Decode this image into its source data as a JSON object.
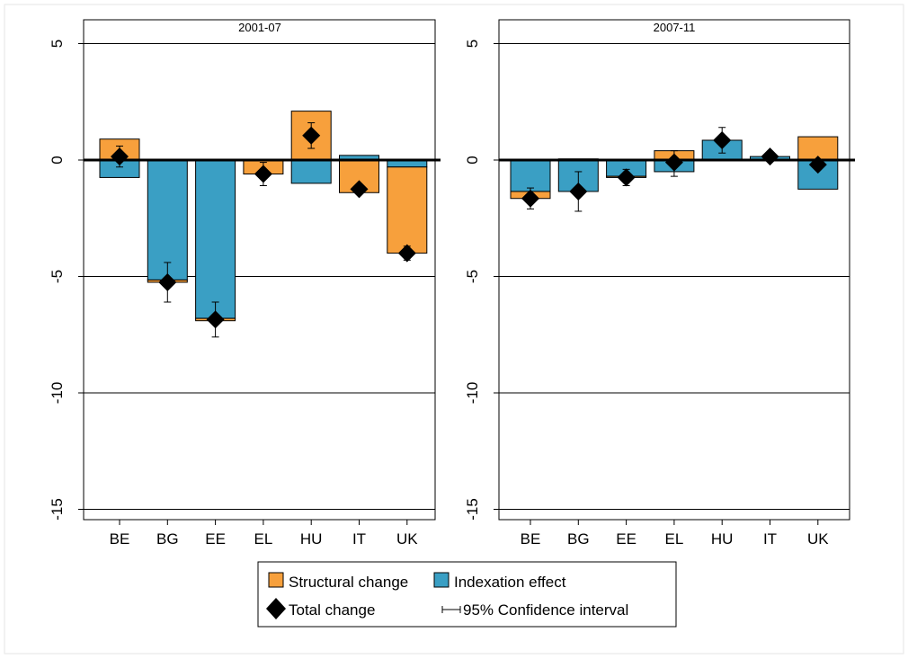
{
  "colors": {
    "structural": "#f7a03c",
    "indexation": "#3a9fc4",
    "total": "#000000",
    "grid": "#000000",
    "background": "#ffffff"
  },
  "legend": {
    "structural_label": "Structural change",
    "indexation_label": "Indexation effect",
    "total_label": "Total change",
    "ci_label": "95% Confidence interval"
  },
  "chart_data": [
    {
      "type": "bar",
      "title": "2001-07",
      "categories": [
        "BE",
        "BG",
        "EE",
        "EL",
        "HU",
        "IT",
        "UK"
      ],
      "yticks": [
        5,
        0,
        -5,
        -10,
        -15
      ],
      "ylim": [
        -15.2,
        6.3
      ],
      "series": [
        {
          "name": "Structural change",
          "values": [
            0.9,
            -0.1,
            -0.1,
            -0.6,
            2.1,
            -1.4,
            -3.7
          ]
        },
        {
          "name": "Indexation effect",
          "values": [
            -0.75,
            -5.15,
            -6.8,
            0.0,
            -1.0,
            0.2,
            -0.3
          ]
        },
        {
          "name": "Total change",
          "values": [
            0.15,
            -5.25,
            -6.85,
            -0.6,
            1.05,
            -1.25,
            -4.0
          ]
        }
      ],
      "ci": [
        [
          -0.3,
          0.6
        ],
        [
          -6.1,
          -4.4
        ],
        [
          -7.6,
          -6.1
        ],
        [
          -1.1,
          -0.1
        ],
        [
          0.5,
          1.6
        ],
        [
          -1.35,
          -1.15
        ],
        [
          -4.3,
          -3.7
        ]
      ]
    },
    {
      "type": "bar",
      "title": "2007-11",
      "categories": [
        "BE",
        "BG",
        "EE",
        "EL",
        "HU",
        "IT",
        "UK"
      ],
      "yticks": [
        5,
        0,
        -5,
        -10,
        -15
      ],
      "ylim": [
        -15.2,
        6.3
      ],
      "series": [
        {
          "name": "Structural change",
          "values": [
            -0.3,
            0.05,
            -0.05,
            0.4,
            0.0,
            0.0,
            1.0
          ]
        },
        {
          "name": "Indexation effect",
          "values": [
            -1.35,
            -1.35,
            -0.7,
            -0.5,
            0.85,
            0.15,
            -1.25
          ]
        },
        {
          "name": "Total change",
          "values": [
            -1.65,
            -1.35,
            -0.75,
            -0.1,
            0.85,
            0.15,
            -0.2
          ]
        }
      ],
      "ci": [
        [
          -2.1,
          -1.2
        ],
        [
          -2.2,
          -0.5
        ],
        [
          -1.1,
          -0.4
        ],
        [
          -0.7,
          0.4
        ],
        [
          0.3,
          1.4
        ],
        [
          0.05,
          0.25
        ],
        [
          -0.4,
          0.0
        ]
      ]
    }
  ]
}
